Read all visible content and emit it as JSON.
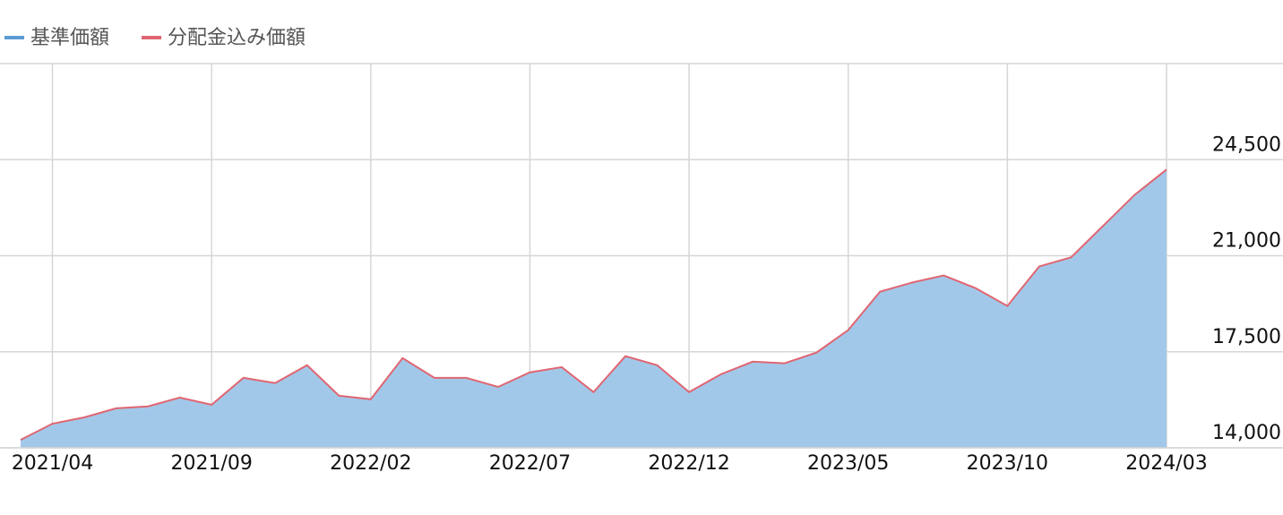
{
  "chart_data": {
    "type": "area-line",
    "categories": [
      null,
      "2021/04",
      null,
      null,
      null,
      null,
      "2021/09",
      null,
      null,
      null,
      null,
      "2022/02",
      null,
      null,
      null,
      null,
      "2022/07",
      null,
      null,
      null,
      null,
      "2022/12",
      null,
      null,
      null,
      null,
      "2023/05",
      null,
      null,
      null,
      null,
      "2023/10",
      null,
      null,
      null,
      null,
      "2024/03"
    ],
    "series": [
      {
        "name": "基準価額",
        "color": "#5b9bd5",
        "values": [
          14290,
          14880,
          15110,
          15440,
          15510,
          15830,
          15570,
          16550,
          16360,
          17010,
          15900,
          15770,
          17270,
          16550,
          16550,
          16220,
          16750,
          16940,
          16030,
          17340,
          17010,
          16030,
          16680,
          17140,
          17080,
          17470,
          18290,
          19690,
          20020,
          20280,
          19820,
          19170,
          20610,
          20940,
          22080,
          23220,
          24140
        ]
      },
      {
        "name": "分配金込み価額",
        "color": "#e06672",
        "values": [
          14290,
          14880,
          15110,
          15440,
          15510,
          15830,
          15570,
          16550,
          16360,
          17010,
          15900,
          15770,
          17270,
          16550,
          16550,
          16220,
          16750,
          16940,
          16030,
          17340,
          17010,
          16030,
          16680,
          17140,
          17080,
          17470,
          18290,
          19690,
          20020,
          20280,
          19820,
          19170,
          20610,
          20940,
          22080,
          23220,
          24140
        ]
      }
    ],
    "ylim": [
      14000,
      28000
    ],
    "yticks": [
      {
        "value": 14000,
        "label": "14,000"
      },
      {
        "value": 17500,
        "label": "17,500"
      },
      {
        "value": 21000,
        "label": "21,000"
      },
      {
        "value": 24500,
        "label": "24,500"
      }
    ],
    "grid": true
  }
}
